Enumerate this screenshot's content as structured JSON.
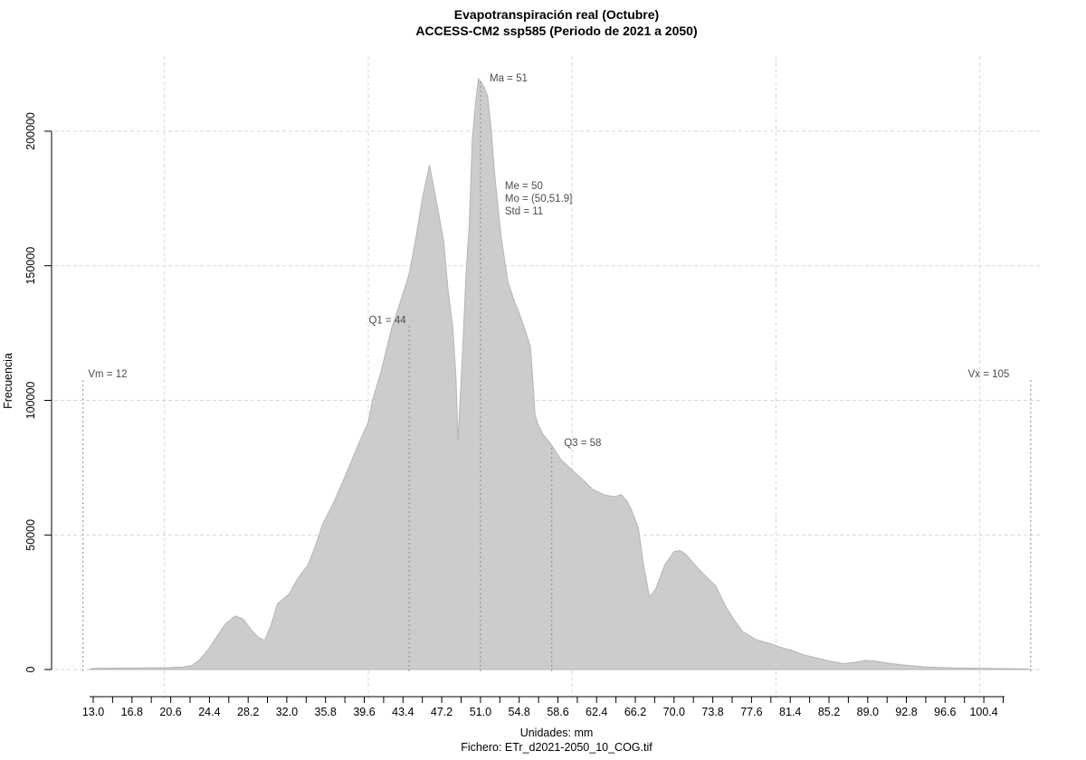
{
  "chart_data": {
    "type": "area",
    "title": "Evapotranspiración real (Octubre)",
    "subtitle": "ACCESS-CM2 ssp585 (Periodo de 2021 a 2050)",
    "ylabel": "Frecuencia",
    "units_label": "Unidades: mm",
    "file_label": "Fichero: ETr_d2021-2050_10_COG.tif",
    "xlim": [
      13.0,
      102.3
    ],
    "ylim": [
      0,
      200000
    ],
    "grid": "on",
    "x_ticks": {
      "start": 13.0,
      "step": 1.9,
      "count": 48
    },
    "x_tick_labels": [
      "13.0",
      "16.8",
      "20.6",
      "24.4",
      "28.2",
      "32.0",
      "35.8",
      "39.6",
      "43.4",
      "47.2",
      "51.0",
      "54.8",
      "58.6",
      "62.4",
      "66.2",
      "70.0",
      "73.8",
      "77.6",
      "81.4",
      "85.2",
      "89.0",
      "92.8",
      "96.6",
      "100.4"
    ],
    "y_ticks": [
      {
        "value": 0,
        "label": "0"
      },
      {
        "value": 50000,
        "label": "50000"
      },
      {
        "value": 100000,
        "label": "100000"
      },
      {
        "value": 150000,
        "label": "150000"
      },
      {
        "value": 200000,
        "label": "200000"
      }
    ],
    "grid_x": [
      20,
      40,
      60,
      80,
      100
    ],
    "stats": {
      "Vm": 12,
      "Q1": 44,
      "Me": 50,
      "Ma": 51,
      "Mo": "(50,51.9]",
      "Std": 11,
      "Q3": 58,
      "Vx": 105
    },
    "markers": [
      {
        "id": "vm-line",
        "x": 12,
        "top": 108000
      },
      {
        "id": "q1-line",
        "x": 44,
        "top": 128000
      },
      {
        "id": "ma-line",
        "x": 51,
        "top": 219200
      },
      {
        "id": "q3-line",
        "x": 58,
        "top": 83400
      },
      {
        "id": "vx-line",
        "x": 105,
        "top": 108000
      }
    ],
    "annotations": [
      {
        "id": "vm-label",
        "text": "Vm = 12",
        "x": 12.5,
        "y": 108500,
        "anchor": "start"
      },
      {
        "id": "q1-label",
        "text": "Q1 = 44",
        "x": 43.7,
        "y": 128500,
        "anchor": "end"
      },
      {
        "id": "ma-label",
        "text": "Ma = 51",
        "x": 51.9,
        "y": 218500,
        "anchor": "start"
      },
      {
        "id": "me-label",
        "text": "Me = 50",
        "x": 53.4,
        "y": 178500,
        "anchor": "start"
      },
      {
        "id": "mo-label",
        "text": "Mo = (50,51.9]",
        "x": 53.4,
        "y": 173800,
        "anchor": "start"
      },
      {
        "id": "std-label",
        "text": "Std = 11",
        "x": 53.4,
        "y": 169000,
        "anchor": "start"
      },
      {
        "id": "q3-label",
        "text": "Q3 = 58",
        "x": 59.2,
        "y": 83000,
        "anchor": "start"
      },
      {
        "id": "vx-label",
        "text": "Vx = 105",
        "x": 102.9,
        "y": 108500,
        "anchor": "end"
      }
    ],
    "series": [
      {
        "name": "frequency-histogram",
        "points": [
          [
            12.6,
            0
          ],
          [
            13,
            400
          ],
          [
            15,
            500
          ],
          [
            17,
            600
          ],
          [
            19,
            650
          ],
          [
            20.5,
            700
          ],
          [
            21.8,
            900
          ],
          [
            22.7,
            1500
          ],
          [
            23.4,
            3500
          ],
          [
            24.2,
            7000
          ],
          [
            25,
            11500
          ],
          [
            26,
            17000
          ],
          [
            26.9,
            19900
          ],
          [
            27.7,
            18800
          ],
          [
            28.5,
            14800
          ],
          [
            29.2,
            12000
          ],
          [
            29.8,
            10800
          ],
          [
            30.4,
            16000
          ],
          [
            31.1,
            24500
          ],
          [
            32.2,
            28000
          ],
          [
            33.1,
            34000
          ],
          [
            34.1,
            39000
          ],
          [
            34.9,
            47000
          ],
          [
            35.5,
            54000
          ],
          [
            36.6,
            62000
          ],
          [
            37.8,
            72500
          ],
          [
            39,
            83500
          ],
          [
            40,
            92000
          ],
          [
            40.4,
            100000
          ],
          [
            41.2,
            110000
          ],
          [
            42.3,
            127000
          ],
          [
            43,
            135000
          ],
          [
            44,
            147000
          ],
          [
            44.7,
            161000
          ],
          [
            45.3,
            175000
          ],
          [
            46,
            187500
          ],
          [
            46.7,
            173500
          ],
          [
            47.4,
            159000
          ],
          [
            47.8,
            142000
          ],
          [
            48.3,
            126500
          ],
          [
            48.6,
            108000
          ],
          [
            48.8,
            85000
          ],
          [
            49,
            100000
          ],
          [
            49.3,
            122000
          ],
          [
            49.6,
            148000
          ],
          [
            49.9,
            165000
          ],
          [
            50.2,
            197000
          ],
          [
            50.5,
            210000
          ],
          [
            50.8,
            219500
          ],
          [
            51.1,
            218000
          ],
          [
            51.4,
            216000
          ],
          [
            51.7,
            213000
          ],
          [
            52,
            203000
          ],
          [
            52.4,
            184000
          ],
          [
            53,
            161500
          ],
          [
            53.7,
            144000
          ],
          [
            54.4,
            136000
          ],
          [
            54.7,
            133500
          ],
          [
            55.3,
            127000
          ],
          [
            55.9,
            120000
          ],
          [
            56.1,
            110000
          ],
          [
            56.35,
            95000
          ],
          [
            56.6,
            91500
          ],
          [
            57.1,
            87500
          ],
          [
            57.9,
            83800
          ],
          [
            58.9,
            78000
          ],
          [
            60.3,
            73000
          ],
          [
            61.2,
            70000
          ],
          [
            62,
            67000
          ],
          [
            63.2,
            64800
          ],
          [
            64.2,
            64200
          ],
          [
            64.8,
            65000
          ],
          [
            65.4,
            62500
          ],
          [
            65.8,
            59500
          ],
          [
            66.5,
            52500
          ],
          [
            67,
            39000
          ],
          [
            67.6,
            27000
          ],
          [
            68.2,
            30000
          ],
          [
            69.1,
            39000
          ],
          [
            70,
            43800
          ],
          [
            70.6,
            44200
          ],
          [
            71.1,
            43000
          ],
          [
            72.3,
            37800
          ],
          [
            73.5,
            33200
          ],
          [
            74.1,
            31000
          ],
          [
            75,
            24000
          ],
          [
            75.8,
            19000
          ],
          [
            76.7,
            14200
          ],
          [
            78,
            11200
          ],
          [
            79.4,
            9600
          ],
          [
            80.5,
            8200
          ],
          [
            81.5,
            7200
          ],
          [
            82.6,
            5600
          ],
          [
            84,
            4300
          ],
          [
            85.5,
            3000
          ],
          [
            86.6,
            2200
          ],
          [
            87.6,
            2600
          ],
          [
            88.8,
            3400
          ],
          [
            89.8,
            3100
          ],
          [
            91,
            2400
          ],
          [
            92.2,
            1800
          ],
          [
            93.3,
            1400
          ],
          [
            94.5,
            1000
          ],
          [
            95.9,
            800
          ],
          [
            97.5,
            600
          ],
          [
            99,
            500
          ],
          [
            100.5,
            400
          ],
          [
            102,
            350
          ],
          [
            103.5,
            300
          ],
          [
            104.6,
            200
          ],
          [
            105,
            0
          ]
        ]
      }
    ],
    "colors": {
      "fill": "#cccccc",
      "outline": "#b5b5b5",
      "grid": "#d9d9d9",
      "marker": "#8c8c8c",
      "annotation": "#4d4d4d",
      "axis": "#000000"
    }
  }
}
